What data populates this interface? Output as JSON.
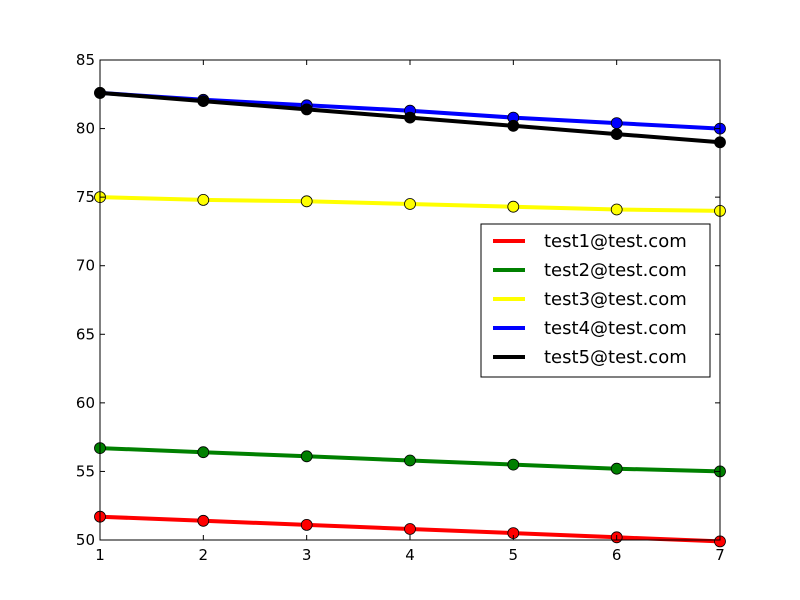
{
  "chart_data": {
    "type": "line",
    "x": [
      1,
      2,
      3,
      4,
      5,
      6,
      7
    ],
    "xlim": [
      1,
      7
    ],
    "ylim": [
      50,
      85
    ],
    "xticks": [
      "1",
      "2",
      "3",
      "4",
      "5",
      "6",
      "7"
    ],
    "yticks": [
      "50",
      "55",
      "60",
      "65",
      "70",
      "75",
      "80",
      "85"
    ],
    "grid": false,
    "legend_position": "center-right",
    "series": [
      {
        "name": "test1@test.com",
        "color": "#ff0000",
        "values": [
          51.7,
          51.4,
          51.1,
          50.8,
          50.5,
          50.2,
          49.9
        ]
      },
      {
        "name": "test2@test.com",
        "color": "#008000",
        "values": [
          56.7,
          56.4,
          56.1,
          55.8,
          55.5,
          55.2,
          55.0
        ]
      },
      {
        "name": "test3@test.com",
        "color": "#ffff00",
        "values": [
          75.0,
          74.8,
          74.7,
          74.5,
          74.3,
          74.1,
          74.0
        ]
      },
      {
        "name": "test4@test.com",
        "color": "#0000ff",
        "values": [
          82.6,
          82.1,
          81.7,
          81.3,
          80.8,
          80.4,
          80.0
        ]
      },
      {
        "name": "test5@test.com",
        "color": "#000000",
        "values": [
          82.6,
          82.0,
          81.4,
          80.8,
          80.2,
          79.6,
          79.0
        ]
      }
    ]
  }
}
